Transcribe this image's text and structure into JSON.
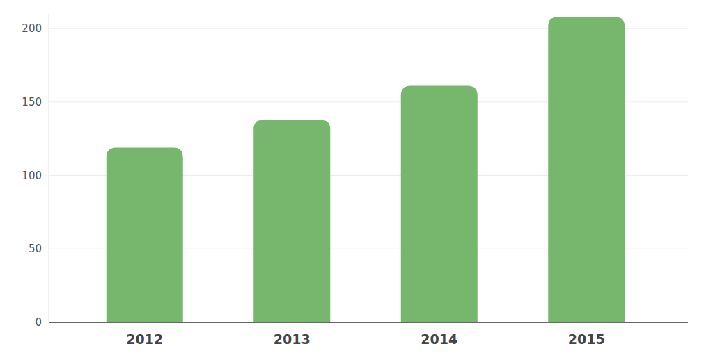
{
  "chart_data": {
    "type": "bar",
    "categories": [
      "2012",
      "2013",
      "2014",
      "2015"
    ],
    "values": [
      119,
      138,
      161,
      208
    ],
    "color": "#76b66d",
    "ylim": [
      0,
      210
    ],
    "yticks": [
      0,
      50,
      100,
      150,
      200
    ],
    "grid": true
  }
}
